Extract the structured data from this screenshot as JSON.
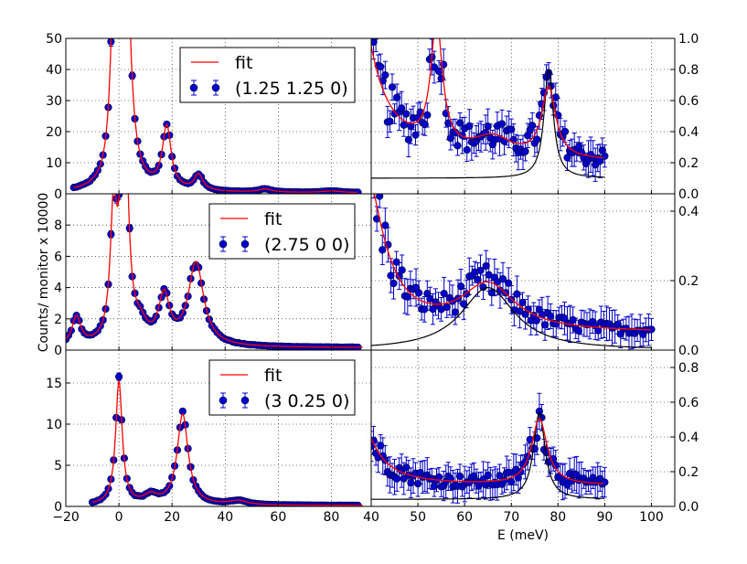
{
  "chart_data": [
    {
      "id": "p_l1",
      "type": "scatter",
      "panel": "left-top",
      "xlim": [
        -20,
        95
      ],
      "ylim": [
        0,
        50
      ],
      "yticks": [
        "0",
        "10",
        "20",
        "30",
        "40",
        "50"
      ],
      "xticks": [],
      "legend": {
        "fit": "fit",
        "data": "(1.25 1.25 0)"
      },
      "fit_peaks": [
        [
          -2,
          48,
          1.5
        ],
        [
          2,
          130,
          1.8
        ],
        [
          18,
          20,
          2.0
        ],
        [
          30,
          5,
          2.0
        ],
        [
          55,
          1,
          3
        ],
        [
          80,
          0.5,
          4
        ]
      ],
      "fit_base": 0.3,
      "fit_range": [
        -17,
        90
      ],
      "data_range": [
        -17,
        90
      ],
      "data_step": 1.0
    },
    {
      "id": "p_l2",
      "type": "scatter",
      "panel": "left-middle",
      "xlim": [
        -20,
        95
      ],
      "ylim": [
        0,
        10
      ],
      "yticks": [
        "0",
        "2",
        "4",
        "6",
        "8"
      ],
      "xticks": [],
      "legend": {
        "fit": "fit",
        "data": "(2.75 0 0)"
      },
      "fit_peaks": [
        [
          -16,
          1.8,
          2
        ],
        [
          -2,
          8,
          1.5
        ],
        [
          2,
          18,
          1.5
        ],
        [
          8,
          1.0,
          3
        ],
        [
          17,
          3.0,
          2.5
        ],
        [
          29,
          5.3,
          3.5
        ]
      ],
      "fit_base": 0.15,
      "fit_range": [
        -20,
        92
      ],
      "data_range": [
        -20,
        90
      ],
      "data_step": 1.0
    },
    {
      "id": "p_l3",
      "type": "scatter",
      "panel": "left-bottom",
      "xlim": [
        -20,
        95
      ],
      "ylim": [
        0,
        19
      ],
      "yticks": [
        "0",
        "5",
        "10",
        "15"
      ],
      "xticks": [
        "−20",
        "0",
        "20",
        "40",
        "60",
        "80"
      ],
      "legend": {
        "fit": "fit",
        "data": "(3 0.25 0)"
      },
      "fit_peaks": [
        [
          0,
          15,
          1.5
        ],
        [
          12,
          1.0,
          3
        ],
        [
          24,
          11,
          2.5
        ],
        [
          45,
          0.5,
          4
        ]
      ],
      "fit_base": 0.1,
      "fit_range": [
        -10,
        92
      ],
      "data_range": [
        -10,
        90
      ],
      "data_step": 1.0
    },
    {
      "id": "p_r1",
      "type": "scatter",
      "panel": "right-top",
      "xlim": [
        40,
        105
      ],
      "ylim": [
        0,
        1.0
      ],
      "yticks": [
        "0.0",
        "0.2",
        "0.4",
        "0.6",
        "0.8",
        "1.0"
      ],
      "xticks": [],
      "fit_peaks": [
        [
          33,
          3.0,
          4
        ],
        [
          54,
          0.8,
          1.5
        ],
        [
          66,
          0.12,
          5
        ],
        [
          78,
          0.45,
          1.8
        ]
      ],
      "fit_base": 0.2,
      "fit_range": [
        40,
        90
      ],
      "component_peaks": [
        [
          78,
          0.7,
          1.2
        ]
      ],
      "component_base": 0.1,
      "component_range": [
        40,
        90
      ],
      "data_range": [
        40,
        90
      ],
      "data_step": 0.5
    },
    {
      "id": "p_r2",
      "type": "scatter",
      "panel": "right-middle",
      "xlim": [
        40,
        105
      ],
      "ylim": [
        0,
        0.45
      ],
      "yticks": [
        "0.0",
        "0.2",
        "0.4"
      ],
      "xticks": [],
      "fit_peaks": [
        [
          38,
          0.5,
          5
        ],
        [
          65,
          0.13,
          7
        ]
      ],
      "fit_base": 0.05,
      "fit_range": [
        40,
        100
      ],
      "component_peaks": [
        [
          65,
          0.18,
          7
        ]
      ],
      "component_base": 0.0,
      "component_range": [
        40,
        100
      ],
      "data_range": [
        40,
        100
      ],
      "data_step": 0.6
    },
    {
      "id": "p_r3",
      "type": "scatter",
      "panel": "right-bottom",
      "xlim": [
        40,
        105
      ],
      "ylim": [
        0,
        0.9
      ],
      "yticks": [
        "0.0",
        "0.2",
        "0.4",
        "0.6",
        "0.8"
      ],
      "xticks": [
        "40",
        "50",
        "60",
        "70",
        "80",
        "90",
        "100"
      ],
      "xlabel": "E (meV)",
      "fit_peaks": [
        [
          35,
          0.7,
          4
        ],
        [
          76,
          0.38,
          2
        ]
      ],
      "fit_base": 0.12,
      "fit_range": [
        40,
        90
      ],
      "component_peaks": [
        [
          76,
          0.5,
          1.5
        ]
      ],
      "component_base": 0.04,
      "component_range": [
        40,
        90
      ],
      "data_range": [
        40,
        90
      ],
      "data_step": 0.5
    }
  ],
  "ylabel": "Counts/ monitor x 10000",
  "colors": {
    "fit": "#ff0000",
    "data": "#0000cc",
    "component": "#000000",
    "grid": "#000000"
  }
}
